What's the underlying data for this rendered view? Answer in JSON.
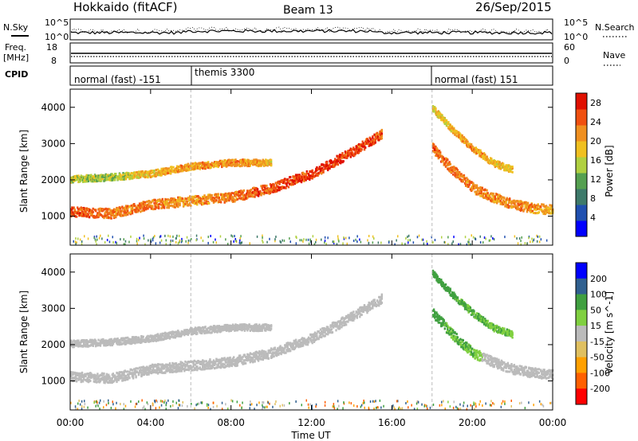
{
  "header": {
    "station": "Hokkaido (fitACF)",
    "beam": "Beam 13",
    "date": "26/Sep/2015"
  },
  "noise_panel": {
    "left_label": "N.Sky",
    "right_label": "N.Search",
    "left_ticks": [
      "10^5",
      "10^0"
    ],
    "right_ticks": [
      "10^5",
      "10^0"
    ]
  },
  "freq_panel": {
    "left_label_1": "Freq.",
    "left_label_2": "[MHz]",
    "right_label": "Nave",
    "left_ticks": [
      "18",
      "8"
    ],
    "right_ticks": [
      "60",
      "0"
    ]
  },
  "cpid_panel": {
    "label": "CPID",
    "segments": [
      {
        "name": "normal (fast) -151",
        "start_hour": 0,
        "end_hour": 6
      },
      {
        "name": "themis 3300",
        "start_hour": 6,
        "end_hour": 18
      },
      {
        "name": "normal (fast) 151",
        "start_hour": 18,
        "end_hour": 24
      }
    ]
  },
  "colors": {
    "power_scale": [
      "#0000ff",
      "#2050b0",
      "#3e7a6a",
      "#55a050",
      "#b0d040",
      "#f0c020",
      "#f09020",
      "#f05010",
      "#e01000"
    ],
    "velocity_scale": [
      "#ff0000",
      "#ff6000",
      "#ffa000",
      "#e0c060",
      "#bbbbbb",
      "#80d040",
      "#40a040",
      "#306090",
      "#0000ff"
    ]
  },
  "chart_data": [
    {
      "type": "heatmap",
      "title": "",
      "xlabel": "Time UT",
      "ylabel": "Slant Range [km]",
      "xlim": [
        0,
        24
      ],
      "ylim": [
        200,
        4500
      ],
      "x_ticks": [
        "00:00",
        "04:00",
        "08:00",
        "12:00",
        "16:00",
        "20:00",
        "00:00"
      ],
      "y_ticks": [
        "1000",
        "2000",
        "3000",
        "4000"
      ],
      "colorbar": {
        "label": "Power [dB]",
        "ticks": [
          "4",
          "8",
          "12",
          "16",
          "20",
          "24",
          "28"
        ],
        "range": [
          0,
          30
        ]
      },
      "scatter_bands": [
        {
          "name": "lower",
          "points": [
            [
              0,
              1150,
              26
            ],
            [
              2,
              1100,
              24
            ],
            [
              4,
              1350,
              24
            ],
            [
              6,
              1450,
              22
            ],
            [
              8,
              1550,
              24
            ],
            [
              10,
              1800,
              26
            ],
            [
              12,
              2200,
              28
            ],
            [
              14,
              2800,
              28
            ],
            [
              15.5,
              3300,
              26
            ]
          ]
        },
        {
          "name": "upper",
          "points": [
            [
              0,
              2050,
              16
            ],
            [
              2,
              2100,
              14
            ],
            [
              4,
              2200,
              20
            ],
            [
              6,
              2400,
              22
            ],
            [
              8,
              2500,
              22
            ],
            [
              10,
              2500,
              20
            ]
          ]
        },
        {
          "name": "evening-lower",
          "points": [
            [
              18,
              2900,
              26
            ],
            [
              19,
              2300,
              24
            ],
            [
              20,
              1800,
              24
            ],
            [
              21,
              1550,
              22
            ],
            [
              22,
              1350,
              24
            ],
            [
              23,
              1250,
              22
            ],
            [
              24,
              1200,
              20
            ]
          ]
        },
        {
          "name": "evening-upper",
          "points": [
            [
              18,
              4000,
              18
            ],
            [
              19,
              3400,
              20
            ],
            [
              20,
              2900,
              22
            ],
            [
              21,
              2500,
              20
            ],
            [
              22,
              2300,
              18
            ]
          ]
        }
      ]
    },
    {
      "type": "heatmap",
      "title": "",
      "xlabel": "Time UT",
      "ylabel": "Slant Range [km]",
      "xlim": [
        0,
        24
      ],
      "ylim": [
        200,
        4500
      ],
      "x_ticks": [
        "00:00",
        "04:00",
        "08:00",
        "12:00",
        "16:00",
        "20:00",
        "00:00"
      ],
      "y_ticks": [
        "1000",
        "2000",
        "3000",
        "4000"
      ],
      "colorbar": {
        "label": "Velocity [m s^-1]",
        "ticks": [
          "200",
          "100",
          "50",
          "15",
          "-15",
          "-50",
          "-100",
          "-200"
        ],
        "range": [
          -250,
          250
        ]
      },
      "scatter_bands": [
        {
          "name": "lower-ground",
          "points": [
            [
              0,
              1150,
              0
            ],
            [
              2,
              1100,
              0
            ],
            [
              4,
              1350,
              0
            ],
            [
              6,
              1450,
              0
            ],
            [
              8,
              1550,
              0
            ],
            [
              10,
              1800,
              0
            ],
            [
              12,
              2200,
              0
            ],
            [
              14,
              2800,
              0
            ],
            [
              15.5,
              3300,
              0
            ]
          ]
        },
        {
          "name": "upper-ground",
          "points": [
            [
              0,
              2050,
              0
            ],
            [
              2,
              2100,
              0
            ],
            [
              4,
              2200,
              0
            ],
            [
              6,
              2400,
              0
            ],
            [
              8,
              2500,
              0
            ],
            [
              10,
              2500,
              0
            ]
          ]
        },
        {
          "name": "evening-iono",
          "points": [
            [
              18,
              2900,
              40
            ],
            [
              19,
              2300,
              30
            ],
            [
              20,
              1800,
              30
            ],
            [
              21,
              1550,
              0
            ],
            [
              22,
              1350,
              0
            ],
            [
              23,
              1250,
              0
            ],
            [
              24,
              1200,
              0
            ]
          ]
        },
        {
          "name": "evening-upper-iono",
          "points": [
            [
              18,
              4000,
              40
            ],
            [
              19,
              3400,
              35
            ],
            [
              20,
              2900,
              30
            ],
            [
              21,
              2500,
              30
            ],
            [
              22,
              2300,
              25
            ]
          ]
        }
      ]
    }
  ]
}
